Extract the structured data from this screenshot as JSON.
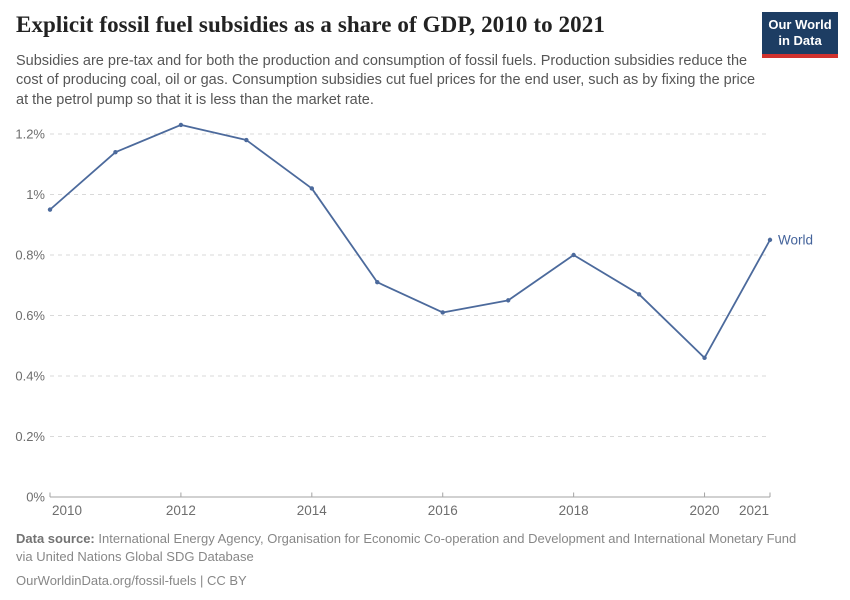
{
  "header": {
    "title": "Explicit fossil fuel subsidies as a share of GDP, 2010 to 2021",
    "subtitle": "Subsidies are pre-tax and for both the production and consumption of fossil fuels. Production subsidies reduce the cost of producing coal, oil or gas. Consumption subsidies cut fuel prices for the end user, such as by fixing the price at the petrol pump so that it is less than the market rate."
  },
  "logo": {
    "line1": "Our World",
    "line2": "in Data",
    "bg_color": "#1d3d63",
    "accent_color": "#d1322e"
  },
  "chart_data": {
    "type": "line",
    "title": "Explicit fossil fuel subsidies as a share of GDP, 2010 to 2021",
    "x": [
      2010,
      2011,
      2012,
      2013,
      2014,
      2015,
      2016,
      2017,
      2018,
      2019,
      2020,
      2021
    ],
    "series": [
      {
        "name": "World",
        "values": [
          0.95,
          1.14,
          1.23,
          1.18,
          1.02,
          0.71,
          0.61,
          0.65,
          0.8,
          0.67,
          0.46,
          0.85
        ],
        "color": "#4C6A9C"
      }
    ],
    "unit": "%",
    "ylim": [
      0,
      1.2
    ],
    "yticks": [
      0,
      0.2,
      0.4,
      0.6,
      0.8,
      1.0,
      1.2
    ],
    "ytick_labels": [
      "0%",
      "0.2%",
      "0.4%",
      "0.6%",
      "0.8%",
      "1%",
      "1.2%"
    ],
    "xticks": [
      2010,
      2012,
      2014,
      2016,
      2018,
      2020,
      2021
    ],
    "grid": "horizontal-dashed",
    "legend_position": "end-of-line-label",
    "end_label": "World",
    "colors": {
      "gridline": "#d9d9d9",
      "axis": "#a3a3a3",
      "tick_label": "#6e6e6e",
      "line": "#4C6A9C",
      "end_label": "#44639B"
    }
  },
  "footer": {
    "data_source_label": "Data source:",
    "data_source_text": " International Energy Agency, Organisation for Economic Co-operation and Development and International Monetary Fund via United Nations Global SDG Database",
    "link_line": "OurWorldinData.org/fossil-fuels | CC BY"
  }
}
